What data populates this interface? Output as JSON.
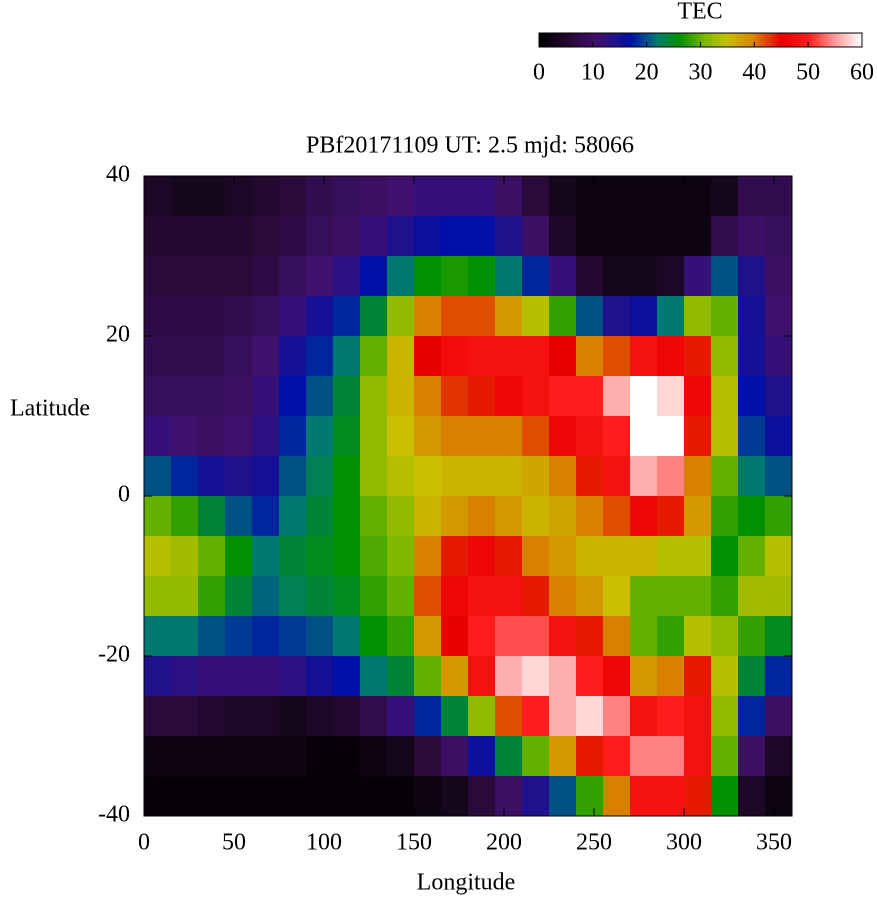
{
  "chart_data": {
    "type": "heatmap",
    "title": "PBf20171109  UT: 2.5  mjd: 58066",
    "xlabel": "Longitude",
    "ylabel": "Latitude",
    "x_edges": [
      0,
      15,
      30,
      45,
      60,
      75,
      90,
      105,
      120,
      135,
      150,
      165,
      180,
      195,
      210,
      225,
      240,
      255,
      270,
      285,
      300,
      315,
      330,
      345,
      360
    ],
    "y_edges": [
      40,
      35,
      30,
      25,
      20,
      15,
      10,
      5,
      0,
      -5,
      -10,
      -15,
      -20,
      -25,
      -30,
      -35,
      -40
    ],
    "z": [
      [
        4,
        3,
        3,
        4,
        5,
        6,
        8,
        9,
        10,
        11,
        12,
        12,
        12,
        10,
        6,
        3,
        2,
        2,
        2,
        2,
        2,
        3,
        8,
        8
      ],
      [
        5,
        5,
        5,
        5,
        6,
        7,
        9,
        10,
        12,
        14,
        16,
        17,
        17,
        14,
        10,
        4,
        2,
        2,
        2,
        2,
        2,
        8,
        10,
        9
      ],
      [
        6,
        6,
        6,
        6,
        7,
        9,
        11,
        13,
        17,
        22,
        26,
        27,
        26,
        22,
        18,
        12,
        5,
        3,
        3,
        4,
        12,
        20,
        14,
        10
      ],
      [
        7,
        7,
        7,
        8,
        9,
        12,
        15,
        18,
        24,
        32,
        40,
        42,
        42,
        38,
        34,
        28,
        20,
        14,
        16,
        22,
        32,
        30,
        15,
        11
      ],
      [
        8,
        8,
        8,
        9,
        11,
        15,
        18,
        22,
        30,
        36,
        45,
        47,
        48,
        48,
        48,
        45,
        40,
        42,
        48,
        46,
        44,
        32,
        15,
        12
      ],
      [
        9,
        9,
        9,
        10,
        12,
        17,
        20,
        24,
        32,
        36,
        40,
        43,
        44,
        46,
        48,
        50,
        50,
        56,
        60,
        58,
        46,
        34,
        17,
        14
      ],
      [
        12,
        11,
        10,
        11,
        13,
        18,
        22,
        25,
        32,
        35,
        38,
        40,
        40,
        40,
        42,
        46,
        48,
        50,
        60,
        60,
        44,
        34,
        19,
        16
      ],
      [
        20,
        18,
        15,
        14,
        15,
        20,
        23,
        26,
        32,
        34,
        35,
        36,
        36,
        36,
        37,
        40,
        44,
        48,
        56,
        54,
        40,
        30,
        22,
        20
      ],
      [
        30,
        28,
        24,
        20,
        18,
        22,
        24,
        26,
        30,
        32,
        36,
        38,
        40,
        38,
        36,
        37,
        40,
        42,
        46,
        44,
        38,
        28,
        26,
        28
      ],
      [
        34,
        33,
        30,
        26,
        22,
        24,
        25,
        26,
        29,
        31,
        40,
        44,
        46,
        44,
        40,
        38,
        36,
        36,
        36,
        34,
        34,
        26,
        30,
        34
      ],
      [
        32,
        32,
        28,
        24,
        21,
        23,
        24,
        25,
        28,
        30,
        42,
        46,
        48,
        48,
        44,
        40,
        38,
        35,
        30,
        30,
        30,
        28,
        33,
        33
      ],
      [
        22,
        22,
        20,
        19,
        18,
        19,
        20,
        22,
        26,
        28,
        38,
        45,
        50,
        52,
        52,
        48,
        44,
        40,
        30,
        28,
        34,
        32,
        28,
        25
      ],
      [
        14,
        13,
        12,
        12,
        12,
        13,
        15,
        17,
        22,
        24,
        30,
        38,
        48,
        56,
        58,
        56,
        50,
        46,
        38,
        40,
        44,
        34,
        24,
        18
      ],
      [
        6,
        6,
        5,
        4,
        4,
        3,
        4,
        5,
        8,
        12,
        18,
        24,
        32,
        42,
        50,
        56,
        58,
        54,
        48,
        50,
        48,
        32,
        18,
        10
      ],
      [
        2,
        2,
        2,
        2,
        2,
        2,
        1,
        1,
        2,
        3,
        6,
        10,
        16,
        24,
        30,
        38,
        44,
        50,
        54,
        54,
        48,
        30,
        10,
        4
      ],
      [
        1,
        1,
        1,
        1,
        1,
        1,
        1,
        1,
        1,
        1,
        2,
        3,
        6,
        10,
        14,
        20,
        28,
        40,
        48,
        48,
        44,
        26,
        4,
        2
      ]
    ],
    "xlim": [
      0,
      360
    ],
    "ylim": [
      -40,
      40
    ],
    "xticks": [
      0,
      50,
      100,
      150,
      200,
      250,
      300,
      350
    ],
    "yticks": [
      -40,
      -20,
      0,
      20,
      40
    ],
    "colorbar_label": "TEC",
    "clim": [
      0,
      60
    ],
    "cticks": [
      0,
      10,
      20,
      30,
      40,
      50,
      60
    ],
    "colormap": [
      {
        "value": 0,
        "color": "#000000"
      },
      {
        "value": 6,
        "color": "#2a0a3a"
      },
      {
        "value": 11,
        "color": "#40106e"
      },
      {
        "value": 17,
        "color": "#0010a8"
      },
      {
        "value": 22,
        "color": "#007a70"
      },
      {
        "value": 26,
        "color": "#009000"
      },
      {
        "value": 31,
        "color": "#80b800"
      },
      {
        "value": 35,
        "color": "#c8c000"
      },
      {
        "value": 40,
        "color": "#d88000"
      },
      {
        "value": 45,
        "color": "#e80000"
      },
      {
        "value": 50,
        "color": "#ff1c1c"
      },
      {
        "value": 55,
        "color": "#ff9a9a"
      },
      {
        "value": 60,
        "color": "#ffffff"
      }
    ]
  }
}
